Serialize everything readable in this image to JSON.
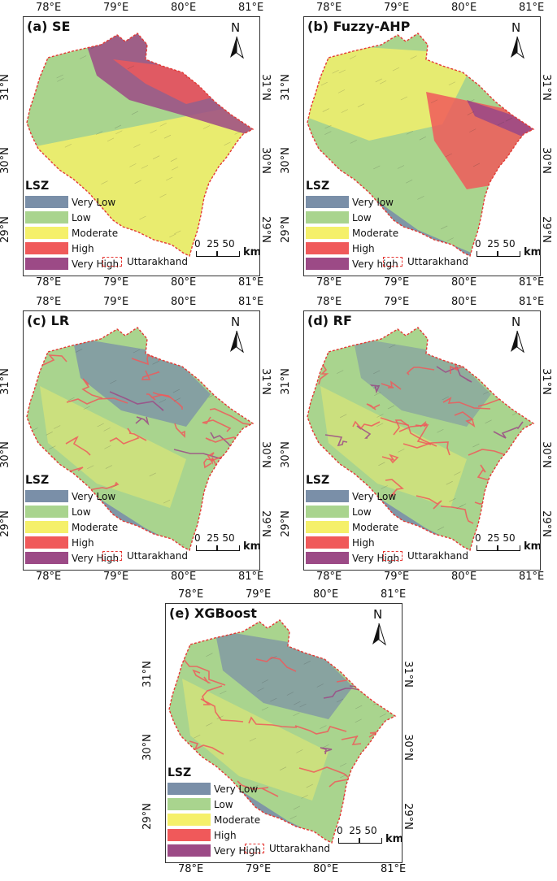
{
  "panels": [
    {
      "title": "(a) SE",
      "legend_title": "LSZ",
      "legend_items": [
        "Very Low",
        "Low",
        "Moderate",
        "High",
        "Very High"
      ],
      "boundary_label": "Uttarakhand",
      "pattern": "se",
      "lon_top": [
        "78°E",
        "79°E",
        "80°E",
        "81°E"
      ],
      "lon_bottom": [
        "78°E",
        "79°E",
        "80°E",
        "81°E"
      ],
      "lat_left": [
        "31°N",
        "30°N",
        "29°N"
      ],
      "lat_right": [
        "31°N",
        "30°N",
        "29°N"
      ]
    },
    {
      "title": "(b) Fuzzy-AHP",
      "legend_title": "LSZ",
      "legend_items": [
        "Very low",
        "Low",
        "Moderate",
        "High",
        "Very high"
      ],
      "boundary_label": "Uttarakhand",
      "pattern": "fahp",
      "lon_top": [
        "78°E",
        "79°E",
        "80°E",
        "81°E"
      ],
      "lon_bottom": [
        "78°E",
        "79°E",
        "80°E",
        "81°E"
      ],
      "lat_left": [
        "31°N",
        "30°N",
        "29°N"
      ],
      "lat_right": [
        "31°N",
        "30°N",
        "29°N"
      ]
    },
    {
      "title": "(c) LR",
      "legend_title": "LSZ",
      "legend_items": [
        "Very Low",
        "Low",
        "Moderate",
        "High",
        "Very High"
      ],
      "boundary_label": "Uttarakhand",
      "pattern": "lr",
      "lon_top": [
        "78°E",
        "79°E",
        "80°E",
        "81°E"
      ],
      "lon_bottom": [
        "78°E",
        "79°E",
        "80°E",
        "81°E"
      ],
      "lat_left": [
        "31°N",
        "30°N",
        "29°N"
      ],
      "lat_right": [
        "31°N",
        "30°N",
        "29°N"
      ]
    },
    {
      "title": "(d) RF",
      "legend_title": "LSZ",
      "legend_items": [
        "Very Low",
        "Low",
        "Moderate",
        "High",
        "Very High"
      ],
      "boundary_label": "Uttarakhand",
      "pattern": "rf",
      "lon_top": [
        "78°E",
        "79°E",
        "80°E",
        "81°E"
      ],
      "lon_bottom": [
        "78°E",
        "79°E",
        "80°E",
        "81°E"
      ],
      "lat_left": [
        "31°N",
        "30°N",
        "29°N"
      ],
      "lat_right": [
        "31°N",
        "30°N",
        "29°N"
      ]
    },
    {
      "title": "(e) XGBoost",
      "legend_title": "LSZ",
      "legend_items": [
        "Very Low",
        "Low",
        "Moderate",
        "High",
        "Very High"
      ],
      "boundary_label": "Uttarakhand",
      "pattern": "xgb",
      "lon_top": [
        "78°E",
        "79°E",
        "80°E",
        "81°E"
      ],
      "lon_bottom": [
        "78°E",
        "79°E",
        "80°E",
        "81°E"
      ],
      "lat_left": [
        "31°N",
        "30°N",
        "29°N"
      ],
      "lat_right": [
        "31°N",
        "30°N",
        "29°N"
      ]
    }
  ],
  "north_letter": "N",
  "scale": {
    "numbers": "0  25 50",
    "unit": "km"
  },
  "colors": {
    "very_low": "#7a8fa8",
    "low": "#a9d48e",
    "moderate": "#f5f06a",
    "high": "#f0595a",
    "very_high": "#9c4a86",
    "boundary": "#e53935"
  }
}
